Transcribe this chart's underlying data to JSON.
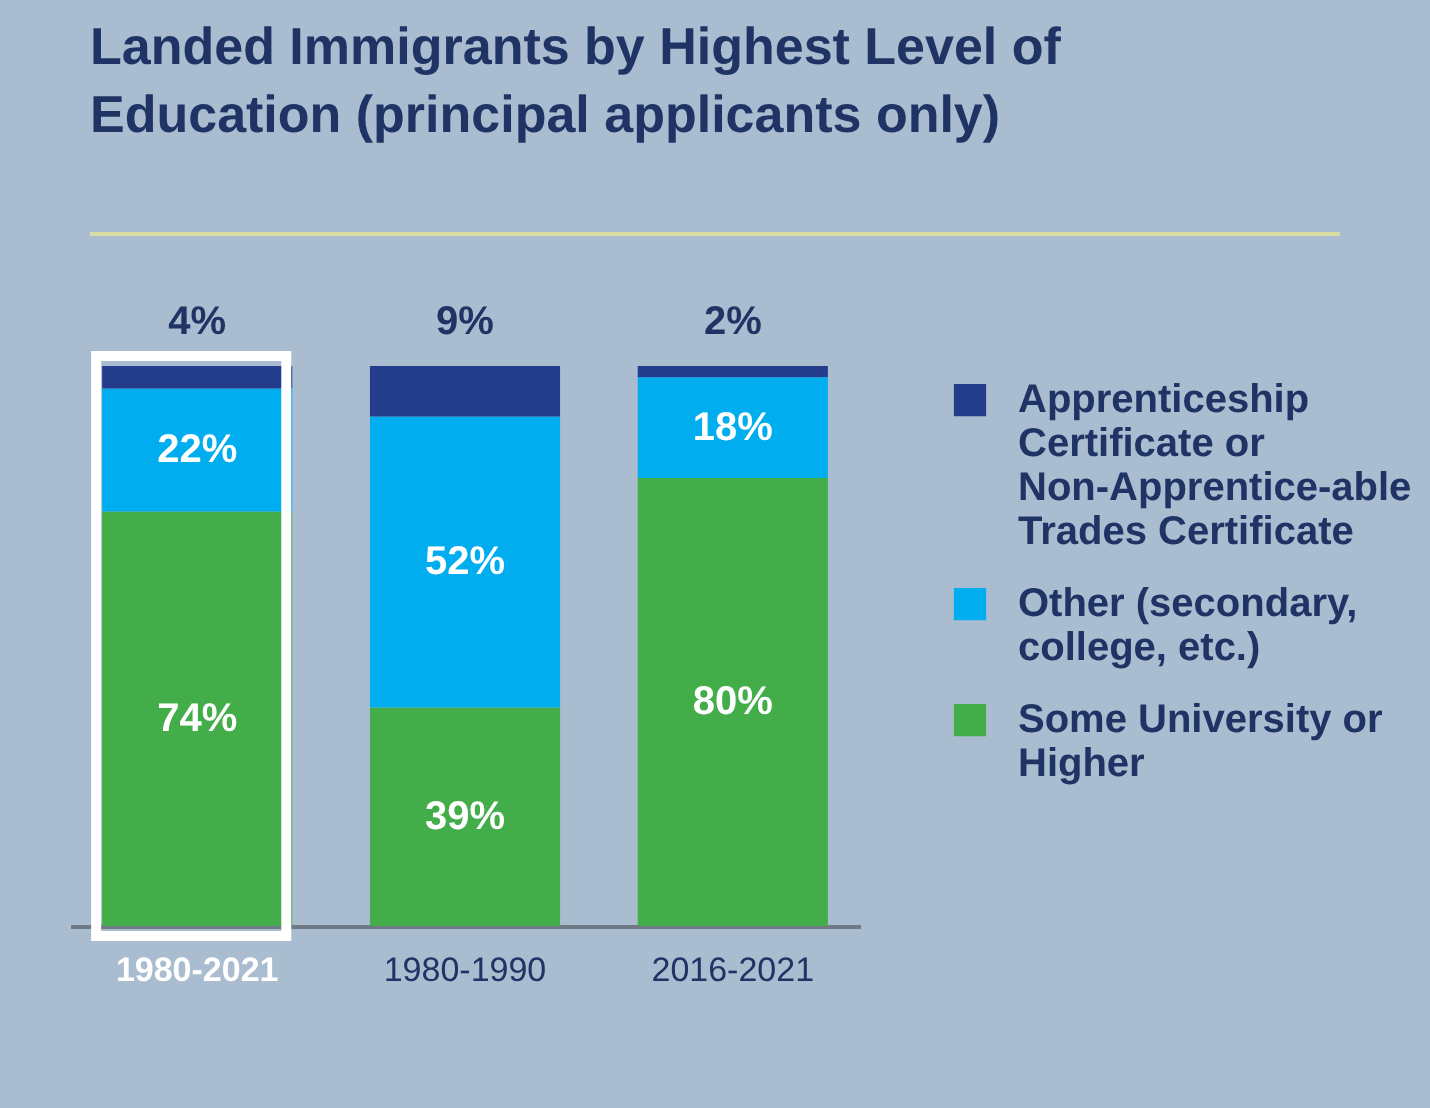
{
  "chart_data": {
    "type": "bar",
    "title": "Landed Immigrants by Highest Level of Education (principal applicants only)",
    "categories": [
      "1980-2021",
      "1980-1990",
      "2016-2021"
    ],
    "stacked": true,
    "legend": "right",
    "series": [
      {
        "name": "Some University or Higher",
        "color": "#43ad4a",
        "values": [
          74,
          39,
          80
        ],
        "value_labels": [
          "74%",
          "39%",
          "80%"
        ]
      },
      {
        "name": "Other (secondary, college, etc.)",
        "color": "#00aeef",
        "values": [
          22,
          52,
          18
        ],
        "value_labels": [
          "22%",
          "52%",
          "18%"
        ]
      },
      {
        "name": "Apprenticeship Certificate or Non-Apprentice-able Trades Certificate",
        "color": "#233c8c",
        "values": [
          4,
          9,
          2
        ],
        "value_labels": [
          "4%",
          "9%",
          "2%"
        ]
      }
    ]
  }
}
